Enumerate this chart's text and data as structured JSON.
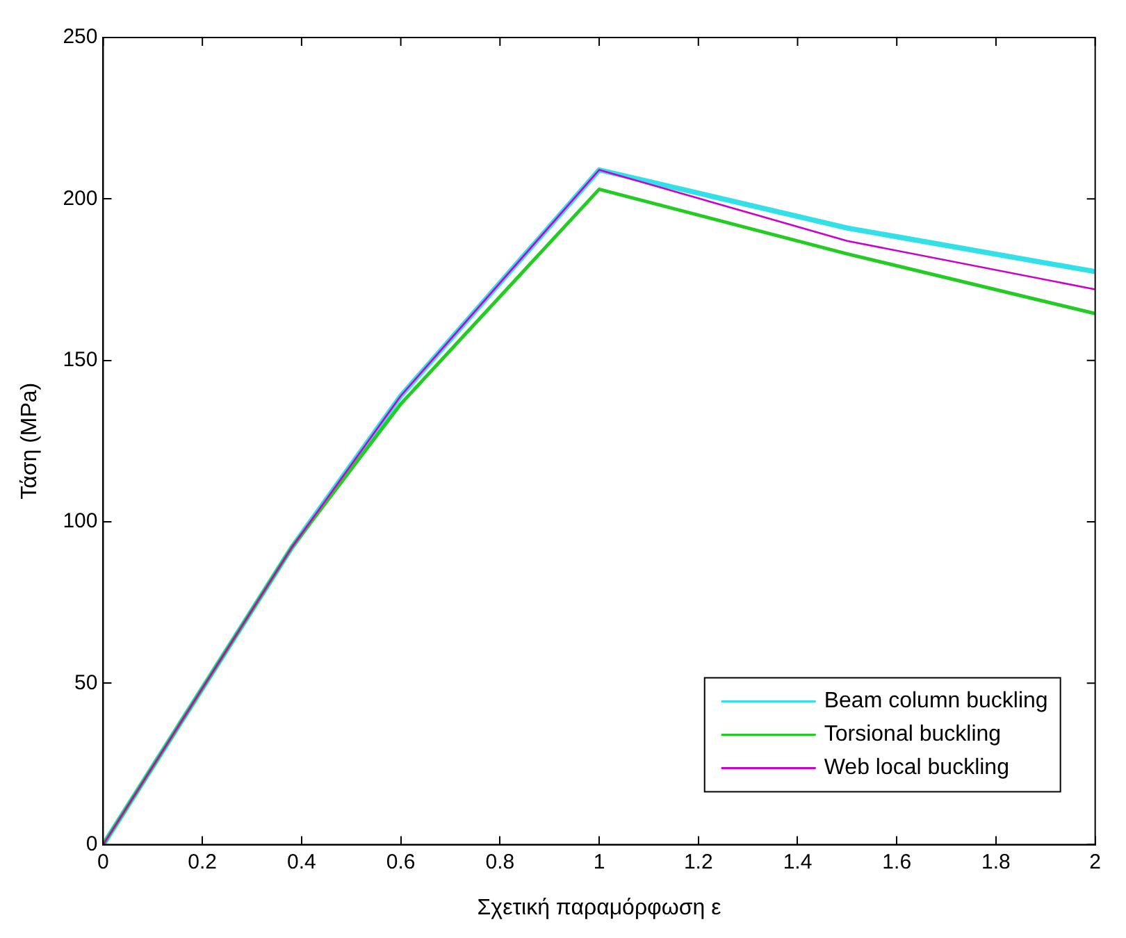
{
  "chart_data": {
    "type": "line",
    "xlabel": "Σχετική παραμόρφωση ε",
    "ylabel": "Τάση (MPa)",
    "xlim": [
      0,
      2
    ],
    "xticks": [
      0,
      0.2,
      0.4,
      0.6,
      0.8,
      1,
      1.2,
      1.4,
      1.6,
      1.8,
      2
    ],
    "ylim": [
      0,
      250
    ],
    "yticks": [
      0,
      50,
      100,
      150,
      200,
      250
    ],
    "grid": false,
    "legend": "bottom right",
    "marker": "none",
    "line_style": "solid",
    "x": [
      0,
      0.38,
      0.6,
      1,
      1.5,
      2
    ],
    "series": [
      {
        "name": "Beam column buckling",
        "color": "#33e0e8",
        "values": [
          0,
          92,
          139,
          209,
          191,
          177.5
        ]
      },
      {
        "name": "Torsional buckling",
        "color": "#22cc22",
        "values": [
          0,
          92,
          136.5,
          203,
          183,
          164.5
        ]
      },
      {
        "name": "Web local buckling",
        "color": "#cc00cc",
        "values": [
          0,
          92,
          139,
          209,
          187,
          172
        ]
      }
    ]
  }
}
